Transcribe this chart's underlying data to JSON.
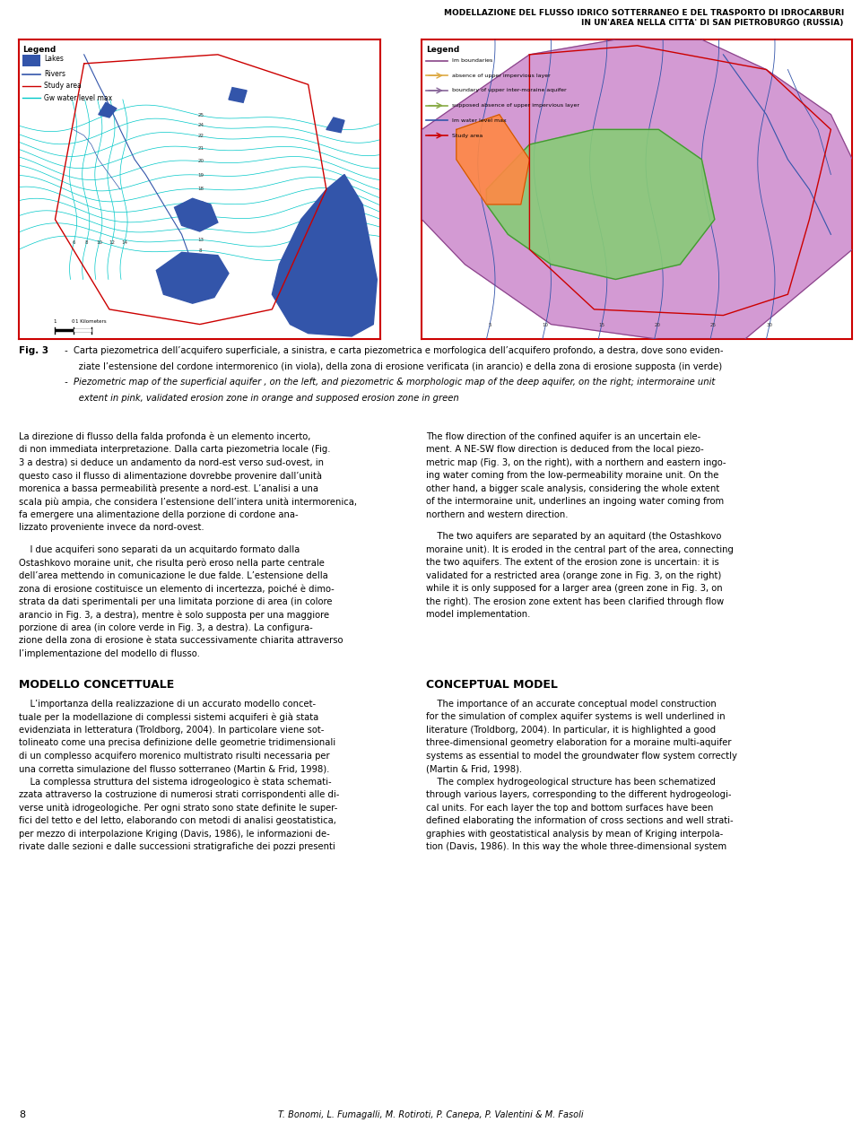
{
  "title_line1": "MODELLAZIONE DEL FLUSSO IDRICO SOTTERRANEO E DEL TRASPORTO DI IDROCARBURI",
  "title_line2": "IN UN'AREA NELLA CITTA' DI SAN PIETROBURGO (RUSSIA)",
  "left_col_section": "MODELLO CONCETTUALE",
  "right_col_section": "CONCEPTUAL MODEL",
  "page_number": "8",
  "footer_authors": "T. Bonomi, L. Fumagalli, M. Rotiroti, P. Canepa, P. Valentini & M. Fasoli",
  "bg_color": "#ffffff",
  "text_color": "#000000"
}
